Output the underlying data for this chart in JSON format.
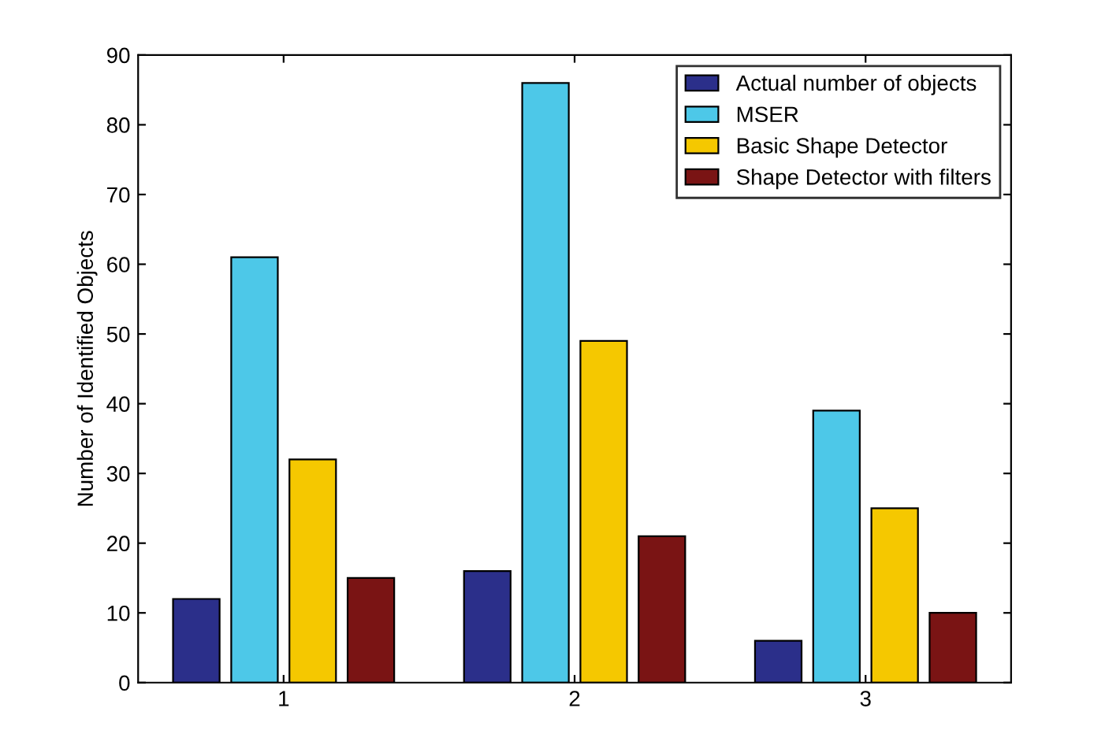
{
  "chart_data": {
    "type": "bar",
    "ylabel": "Number of Identified Objects",
    "categories": [
      "1",
      "2",
      "3"
    ],
    "series": [
      {
        "name": "Actual number of objects",
        "color": "#2b2f8a",
        "values": [
          12,
          16,
          6
        ]
      },
      {
        "name": "MSER",
        "color": "#4dc8e8",
        "values": [
          61,
          86,
          39
        ]
      },
      {
        "name": "Basic Shape Detector",
        "color": "#f5c800",
        "values": [
          32,
          49,
          25
        ]
      },
      {
        "name": "Shape Detector with filters",
        "color": "#7a1414",
        "values": [
          15,
          21,
          10
        ]
      }
    ],
    "ylim": [
      0,
      90
    ],
    "yticks": [
      0,
      10,
      20,
      30,
      40,
      50,
      60,
      70,
      80,
      90
    ],
    "grid": false,
    "legend": "top right"
  }
}
